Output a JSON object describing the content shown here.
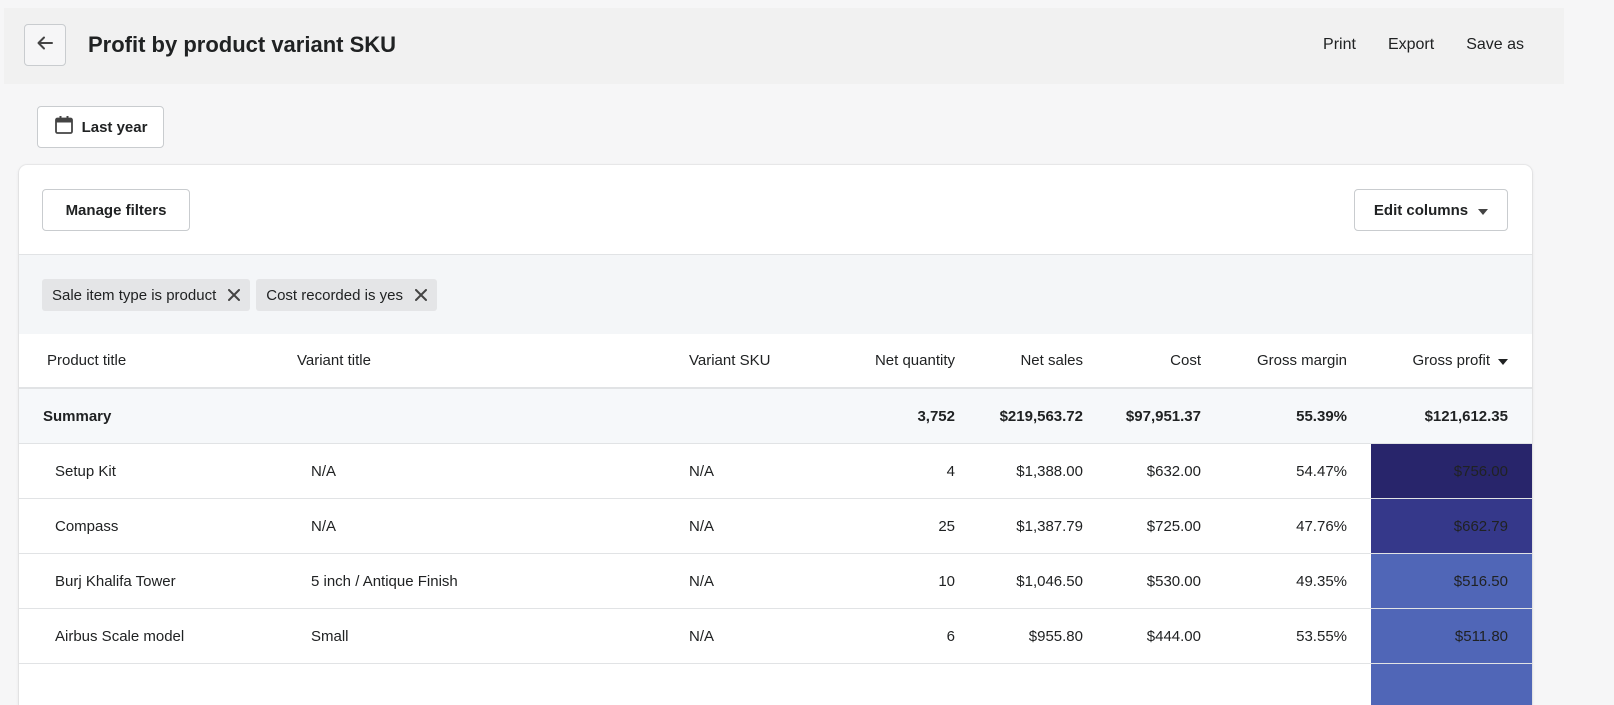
{
  "header": {
    "title": "Profit by product variant SKU",
    "actions": [
      {
        "label": "Print"
      },
      {
        "label": "Export"
      },
      {
        "label": "Save as"
      }
    ]
  },
  "date_filter": {
    "label": "Last year"
  },
  "toolbar": {
    "manage_filters_label": "Manage filters",
    "edit_columns_label": "Edit columns"
  },
  "filters": [
    {
      "label": "Sale item type is product"
    },
    {
      "label": "Cost recorded is yes"
    }
  ],
  "table": {
    "columns": [
      "Product title",
      "Variant title",
      "Variant SKU",
      "Net quantity",
      "Net sales",
      "Cost",
      "Gross margin",
      "Gross profit"
    ],
    "summary": {
      "label": "Summary",
      "net_quantity": "3,752",
      "net_sales": "$219,563.72",
      "cost": "$97,951.37",
      "gross_margin": "55.39%",
      "gross_profit": "$121,612.35"
    },
    "rows": [
      {
        "product": "Setup Kit",
        "variant": "N/A",
        "sku": "N/A",
        "net_quantity": "4",
        "net_sales": "$1,388.00",
        "cost": "$632.00",
        "gross_margin": "54.47%",
        "gross_profit": "$756.00",
        "heat_color": "#28256b"
      },
      {
        "product": "Compass",
        "variant": "N/A",
        "sku": "N/A",
        "net_quantity": "25",
        "net_sales": "$1,387.79",
        "cost": "$725.00",
        "gross_margin": "47.76%",
        "gross_profit": "$662.79",
        "heat_color": "#35388a"
      },
      {
        "product": "Burj Khalifa Tower",
        "variant": "5 inch / Antique Finish",
        "sku": "N/A",
        "net_quantity": "10",
        "net_sales": "$1,046.50",
        "cost": "$530.00",
        "gross_margin": "49.35%",
        "gross_profit": "$516.50",
        "heat_color": "#5066b7"
      },
      {
        "product": "Airbus Scale model",
        "variant": "Small",
        "sku": "N/A",
        "net_quantity": "6",
        "net_sales": "$955.80",
        "cost": "$444.00",
        "gross_margin": "53.55%",
        "gross_profit": "$511.80",
        "heat_color": "#5066b7"
      }
    ],
    "overflow_heat_color": "#5066b7"
  },
  "icons": {
    "back": "arrow-left-icon",
    "calendar": "calendar-icon",
    "caret": "caret-down-icon",
    "remove": "close-icon"
  }
}
